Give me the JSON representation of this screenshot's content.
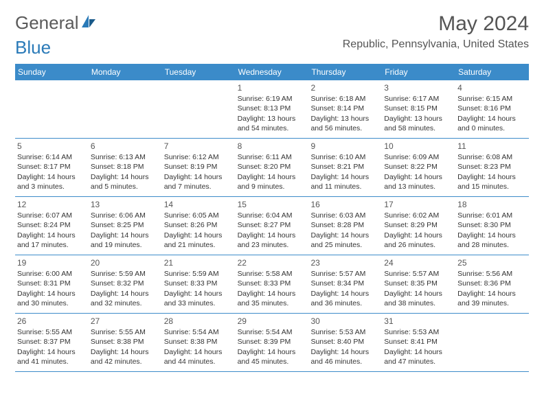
{
  "logo": {
    "part1": "General",
    "part2": "Blue"
  },
  "title": "May 2024",
  "location": "Republic, Pennsylvania, United States",
  "colors": {
    "header_bg": "#3b8bc9",
    "header_text": "#ffffff",
    "border": "#3b8bc9",
    "text": "#333333",
    "title_color": "#555555"
  },
  "day_names": [
    "Sunday",
    "Monday",
    "Tuesday",
    "Wednesday",
    "Thursday",
    "Friday",
    "Saturday"
  ],
  "weeks": [
    [
      {
        "num": "",
        "sunrise": "",
        "sunset": "",
        "daylight": ""
      },
      {
        "num": "",
        "sunrise": "",
        "sunset": "",
        "daylight": ""
      },
      {
        "num": "",
        "sunrise": "",
        "sunset": "",
        "daylight": ""
      },
      {
        "num": "1",
        "sunrise": "Sunrise: 6:19 AM",
        "sunset": "Sunset: 8:13 PM",
        "daylight": "Daylight: 13 hours and 54 minutes."
      },
      {
        "num": "2",
        "sunrise": "Sunrise: 6:18 AM",
        "sunset": "Sunset: 8:14 PM",
        "daylight": "Daylight: 13 hours and 56 minutes."
      },
      {
        "num": "3",
        "sunrise": "Sunrise: 6:17 AM",
        "sunset": "Sunset: 8:15 PM",
        "daylight": "Daylight: 13 hours and 58 minutes."
      },
      {
        "num": "4",
        "sunrise": "Sunrise: 6:15 AM",
        "sunset": "Sunset: 8:16 PM",
        "daylight": "Daylight: 14 hours and 0 minutes."
      }
    ],
    [
      {
        "num": "5",
        "sunrise": "Sunrise: 6:14 AM",
        "sunset": "Sunset: 8:17 PM",
        "daylight": "Daylight: 14 hours and 3 minutes."
      },
      {
        "num": "6",
        "sunrise": "Sunrise: 6:13 AM",
        "sunset": "Sunset: 8:18 PM",
        "daylight": "Daylight: 14 hours and 5 minutes."
      },
      {
        "num": "7",
        "sunrise": "Sunrise: 6:12 AM",
        "sunset": "Sunset: 8:19 PM",
        "daylight": "Daylight: 14 hours and 7 minutes."
      },
      {
        "num": "8",
        "sunrise": "Sunrise: 6:11 AM",
        "sunset": "Sunset: 8:20 PM",
        "daylight": "Daylight: 14 hours and 9 minutes."
      },
      {
        "num": "9",
        "sunrise": "Sunrise: 6:10 AM",
        "sunset": "Sunset: 8:21 PM",
        "daylight": "Daylight: 14 hours and 11 minutes."
      },
      {
        "num": "10",
        "sunrise": "Sunrise: 6:09 AM",
        "sunset": "Sunset: 8:22 PM",
        "daylight": "Daylight: 14 hours and 13 minutes."
      },
      {
        "num": "11",
        "sunrise": "Sunrise: 6:08 AM",
        "sunset": "Sunset: 8:23 PM",
        "daylight": "Daylight: 14 hours and 15 minutes."
      }
    ],
    [
      {
        "num": "12",
        "sunrise": "Sunrise: 6:07 AM",
        "sunset": "Sunset: 8:24 PM",
        "daylight": "Daylight: 14 hours and 17 minutes."
      },
      {
        "num": "13",
        "sunrise": "Sunrise: 6:06 AM",
        "sunset": "Sunset: 8:25 PM",
        "daylight": "Daylight: 14 hours and 19 minutes."
      },
      {
        "num": "14",
        "sunrise": "Sunrise: 6:05 AM",
        "sunset": "Sunset: 8:26 PM",
        "daylight": "Daylight: 14 hours and 21 minutes."
      },
      {
        "num": "15",
        "sunrise": "Sunrise: 6:04 AM",
        "sunset": "Sunset: 8:27 PM",
        "daylight": "Daylight: 14 hours and 23 minutes."
      },
      {
        "num": "16",
        "sunrise": "Sunrise: 6:03 AM",
        "sunset": "Sunset: 8:28 PM",
        "daylight": "Daylight: 14 hours and 25 minutes."
      },
      {
        "num": "17",
        "sunrise": "Sunrise: 6:02 AM",
        "sunset": "Sunset: 8:29 PM",
        "daylight": "Daylight: 14 hours and 26 minutes."
      },
      {
        "num": "18",
        "sunrise": "Sunrise: 6:01 AM",
        "sunset": "Sunset: 8:30 PM",
        "daylight": "Daylight: 14 hours and 28 minutes."
      }
    ],
    [
      {
        "num": "19",
        "sunrise": "Sunrise: 6:00 AM",
        "sunset": "Sunset: 8:31 PM",
        "daylight": "Daylight: 14 hours and 30 minutes."
      },
      {
        "num": "20",
        "sunrise": "Sunrise: 5:59 AM",
        "sunset": "Sunset: 8:32 PM",
        "daylight": "Daylight: 14 hours and 32 minutes."
      },
      {
        "num": "21",
        "sunrise": "Sunrise: 5:59 AM",
        "sunset": "Sunset: 8:33 PM",
        "daylight": "Daylight: 14 hours and 33 minutes."
      },
      {
        "num": "22",
        "sunrise": "Sunrise: 5:58 AM",
        "sunset": "Sunset: 8:33 PM",
        "daylight": "Daylight: 14 hours and 35 minutes."
      },
      {
        "num": "23",
        "sunrise": "Sunrise: 5:57 AM",
        "sunset": "Sunset: 8:34 PM",
        "daylight": "Daylight: 14 hours and 36 minutes."
      },
      {
        "num": "24",
        "sunrise": "Sunrise: 5:57 AM",
        "sunset": "Sunset: 8:35 PM",
        "daylight": "Daylight: 14 hours and 38 minutes."
      },
      {
        "num": "25",
        "sunrise": "Sunrise: 5:56 AM",
        "sunset": "Sunset: 8:36 PM",
        "daylight": "Daylight: 14 hours and 39 minutes."
      }
    ],
    [
      {
        "num": "26",
        "sunrise": "Sunrise: 5:55 AM",
        "sunset": "Sunset: 8:37 PM",
        "daylight": "Daylight: 14 hours and 41 minutes."
      },
      {
        "num": "27",
        "sunrise": "Sunrise: 5:55 AM",
        "sunset": "Sunset: 8:38 PM",
        "daylight": "Daylight: 14 hours and 42 minutes."
      },
      {
        "num": "28",
        "sunrise": "Sunrise: 5:54 AM",
        "sunset": "Sunset: 8:38 PM",
        "daylight": "Daylight: 14 hours and 44 minutes."
      },
      {
        "num": "29",
        "sunrise": "Sunrise: 5:54 AM",
        "sunset": "Sunset: 8:39 PM",
        "daylight": "Daylight: 14 hours and 45 minutes."
      },
      {
        "num": "30",
        "sunrise": "Sunrise: 5:53 AM",
        "sunset": "Sunset: 8:40 PM",
        "daylight": "Daylight: 14 hours and 46 minutes."
      },
      {
        "num": "31",
        "sunrise": "Sunrise: 5:53 AM",
        "sunset": "Sunset: 8:41 PM",
        "daylight": "Daylight: 14 hours and 47 minutes."
      },
      {
        "num": "",
        "sunrise": "",
        "sunset": "",
        "daylight": ""
      }
    ]
  ]
}
